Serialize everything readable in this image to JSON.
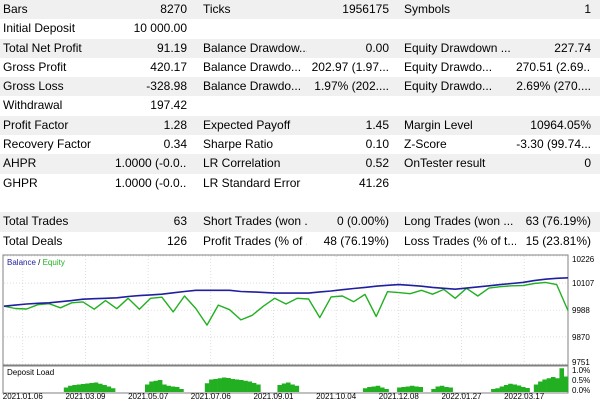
{
  "stats": [
    [
      [
        "Bars",
        "8270"
      ],
      [
        "Ticks",
        "1956175"
      ],
      [
        "Symbols",
        "1"
      ]
    ],
    [
      [
        "Initial Deposit",
        "10 000.00"
      ],
      [
        "",
        ""
      ],
      [
        "",
        ""
      ]
    ],
    [
      [
        "Total Net Profit",
        "91.19"
      ],
      [
        "Balance Drawdow...",
        "0.00"
      ],
      [
        "Equity Drawdown ...",
        "227.74"
      ]
    ],
    [
      [
        "Gross Profit",
        "420.17"
      ],
      [
        "Balance Drawdo...",
        "202.97 (1.97..."
      ],
      [
        "Equity Drawdo...",
        "270.51 (2.69..."
      ]
    ],
    [
      [
        "Gross Loss",
        "-328.98"
      ],
      [
        "Balance Drawdo...",
        "1.97% (202...."
      ],
      [
        "Equity Drawdo...",
        "2.69% (270...."
      ]
    ],
    [
      [
        "Withdrawal",
        "197.42"
      ],
      [
        "",
        ""
      ],
      [
        "",
        ""
      ]
    ],
    [
      [
        "Profit Factor",
        "1.28"
      ],
      [
        "Expected Payoff",
        "1.45"
      ],
      [
        "Margin Level",
        "10964.05%"
      ]
    ],
    [
      [
        "Recovery Factor",
        "0.34"
      ],
      [
        "Sharpe Ratio",
        "0.10"
      ],
      [
        "Z-Score",
        "-3.30 (99.74..."
      ]
    ],
    [
      [
        "AHPR",
        "1.0000 (-0.0..."
      ],
      [
        "LR Correlation",
        "0.52"
      ],
      [
        "OnTester result",
        "0"
      ]
    ],
    [
      [
        "GHPR",
        "1.0000 (-0.0..."
      ],
      [
        "LR Standard Error",
        "41.26"
      ],
      [
        "",
        ""
      ]
    ],
    [
      [
        "",
        ""
      ],
      [
        "",
        ""
      ],
      [
        "",
        ""
      ]
    ],
    [
      [
        "Total Trades",
        "63"
      ],
      [
        "Short Trades (won ...",
        "0 (0.00%)"
      ],
      [
        "Long Trades (won ...",
        "63 (76.19%)"
      ]
    ],
    [
      [
        "Total Deals",
        "126"
      ],
      [
        "Profit Trades (% of ...",
        "48 (76.19%)"
      ],
      [
        "Loss Trades (% of t...",
        "15 (23.81%)"
      ]
    ]
  ],
  "colors": {
    "balance": "#1f1fa0",
    "equity": "#22b022",
    "load": "#22b022",
    "grid": "#c8c8c8",
    "alt_row": "#f0f0f0"
  },
  "chart_data": [
    {
      "type": "line",
      "title": "",
      "legend": [
        {
          "label": "Balance",
          "color": "#1f1fa0"
        },
        {
          "label": "Equity",
          "color": "#22b022"
        }
      ],
      "legend_separator": " / ",
      "legend_position": "top-left",
      "ylim": [
        9751,
        10226
      ],
      "y_ticks": [
        "10226",
        "10107",
        "9988",
        "9870",
        "9751"
      ],
      "y_tick_values": [
        10226,
        10107,
        9988,
        9870,
        9751
      ],
      "x_tick_labels": [
        "2021.01.06",
        "2021.03.09",
        "2021.05.07",
        "2021.07.06",
        "2021.09.01",
        "2021.10.04",
        "2021.12.08",
        "2022.01.27",
        "2022.03.17"
      ],
      "x": [
        0,
        2,
        4,
        6,
        8,
        10,
        12,
        14,
        16,
        18,
        20,
        22,
        24,
        26,
        28,
        30,
        32,
        34,
        36,
        38,
        40,
        42,
        44,
        46,
        48,
        50,
        52,
        54,
        56,
        58,
        60,
        62,
        64,
        66,
        68,
        70,
        72,
        74,
        76,
        78,
        80,
        82,
        84,
        86,
        88,
        90,
        92,
        94,
        96,
        98,
        100
      ],
      "series": [
        {
          "name": "Balance",
          "values": [
            10005,
            10010,
            10015,
            10018,
            10020,
            10025,
            10030,
            10036,
            10038,
            10040,
            10042,
            10048,
            10052,
            10055,
            10058,
            10064,
            10070,
            10075,
            10075,
            10075,
            10075,
            10070,
            10068,
            10066,
            10063,
            10063,
            10063,
            10063,
            10068,
            10072,
            10078,
            10083,
            10088,
            10093,
            10097,
            10100,
            10097,
            10093,
            10088,
            10084,
            10080,
            10085,
            10090,
            10095,
            10100,
            10105,
            10110,
            10118,
            10124,
            10128,
            10130
          ]
        },
        {
          "name": "Equity",
          "values": [
            10005,
            9995,
            9993,
            10012,
            10016,
            9998,
            10020,
            10024,
            9992,
            10030,
            9994,
            10040,
            9992,
            10040,
            10045,
            9980,
            10050,
            9995,
            9922,
            10010,
            9990,
            9945,
            9965,
            10005,
            10040,
            10015,
            10040,
            10037,
            9955,
            10046,
            10050,
            10025,
            10057,
            9960,
            10069,
            10065,
            10060,
            10075,
            10058,
            10079,
            10040,
            10084,
            10050,
            10085,
            10091,
            10095,
            10096,
            10105,
            10110,
            10100,
            9986
          ]
        }
      ]
    },
    {
      "type": "bar",
      "title": "",
      "legend": [
        {
          "label": "Deposit Load",
          "color": "#22b022"
        }
      ],
      "y_ticks": [
        "1.0%",
        "0.5%",
        "0.0%"
      ],
      "ylim": [
        0,
        1.0
      ],
      "values": [
        0,
        0,
        0,
        0,
        0,
        0,
        0,
        0,
        0,
        0,
        0,
        0,
        0,
        0,
        0.18,
        0.25,
        0.28,
        0.3,
        0.32,
        0.34,
        0.36,
        0.38,
        0.33,
        0.28,
        0.22,
        0.15,
        0,
        0,
        0,
        0,
        0,
        0,
        0,
        0.3,
        0.42,
        0.45,
        0.48,
        0.3,
        0.25,
        0.22,
        0.2,
        0.12,
        0,
        0,
        0,
        0,
        0,
        0.35,
        0.5,
        0.52,
        0.55,
        0.58,
        0.56,
        0.52,
        0.5,
        0.48,
        0.45,
        0.42,
        0.36,
        0.3,
        0,
        0,
        0,
        0,
        0.28,
        0.34,
        0.38,
        0.3,
        0.25,
        0,
        0,
        0,
        0,
        0,
        0,
        0,
        0,
        0,
        0,
        0,
        0,
        0,
        0,
        0,
        0.15,
        0.2,
        0.22,
        0.25,
        0.18,
        0.12,
        0,
        0,
        0.18,
        0.2,
        0.22,
        0.25,
        0.22,
        0.2,
        0,
        0,
        0.12,
        0.22,
        0.25,
        0.2,
        0.18,
        0,
        0,
        0,
        0,
        0,
        0,
        0,
        0,
        0,
        0.12,
        0.15,
        0.22,
        0.28,
        0.33,
        0.3,
        0.26,
        0.2,
        0.16,
        0,
        0.3,
        0.42,
        0.5,
        0.55,
        0.6,
        0.55,
        0.95,
        0.62
      ]
    }
  ]
}
